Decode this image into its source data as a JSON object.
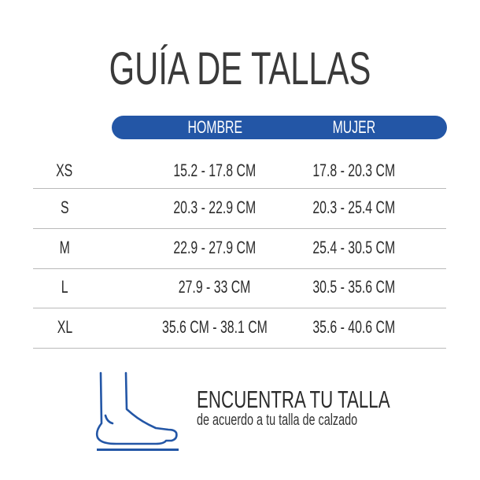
{
  "title": "GUÍA DE TALLAS",
  "accent_color": "#2356a6",
  "columns": [
    "HOMBRE",
    "MUJER"
  ],
  "rows": [
    {
      "size": "XS",
      "hombre": "15.2 - 17.8 CM",
      "mujer": "17.8 - 20.3 CM"
    },
    {
      "size": "S",
      "hombre": "20.3 - 22.9 CM",
      "mujer": "20.3 - 25.4 CM"
    },
    {
      "size": "M",
      "hombre": "22.9 - 27.9 CM",
      "mujer": "25.4 - 30.5 CM"
    },
    {
      "size": "L",
      "hombre": "27.9 - 33 CM",
      "mujer": "30.5 - 35.6 CM"
    },
    {
      "size": "XL",
      "hombre": "35.6 CM - 38.1 CM",
      "mujer": "35.6 - 40.6 CM"
    }
  ],
  "footer": {
    "icon": "foot-icon",
    "heading": "ENCUENTRA TU TALLA",
    "subtext": "de acuerdo a tu talla de calzado"
  }
}
